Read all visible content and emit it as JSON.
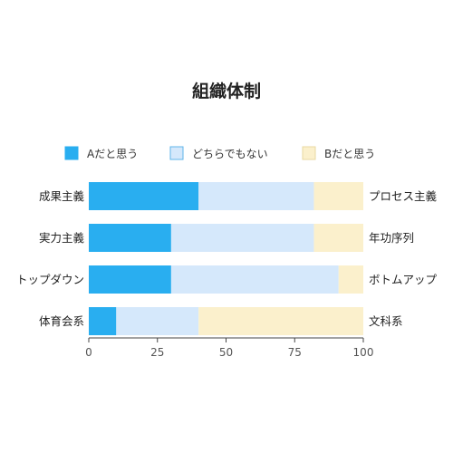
{
  "chart_data": {
    "type": "bar",
    "orientation": "horizontal",
    "stacked": true,
    "title": "組織体制",
    "categories": [
      "成果主義",
      "実力主義",
      "トップダウン",
      "体育会系"
    ],
    "right_labels": [
      "プロセス主義",
      "年功序列",
      "ボトムアップ",
      "文科系"
    ],
    "series": [
      {
        "name": "Aだと思う",
        "values": [
          40,
          30,
          30,
          10
        ],
        "color": "#29aef0",
        "stroke": "#29aef0"
      },
      {
        "name": "どちらでもない",
        "values": [
          42,
          52,
          61,
          30
        ],
        "color": "#d5e8fb",
        "stroke": "#5fb4ea"
      },
      {
        "name": "Bだと思う",
        "values": [
          18,
          18,
          9,
          60
        ],
        "color": "#fbf0cc",
        "stroke": "#e8d9a2"
      }
    ],
    "xlim": [
      0,
      100
    ],
    "xticks": [
      "0",
      "25",
      "50",
      "75",
      "100"
    ],
    "legend_position": "top",
    "grid": false
  }
}
